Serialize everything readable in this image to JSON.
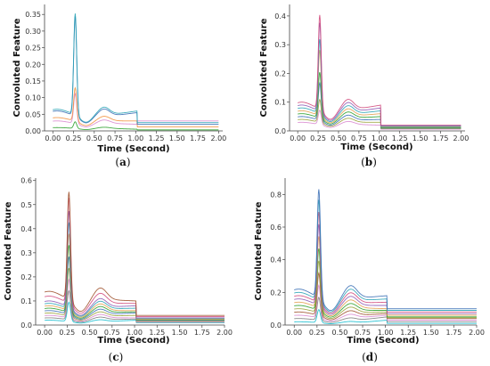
{
  "chart_data": [
    {
      "id": "a",
      "type": "line",
      "panel_label": "(a)",
      "xlabel": "Time (Second)",
      "ylabel": "Convoluted Feature",
      "xlim": [
        -0.1,
        2.05
      ],
      "ylim": [
        0,
        0.38
      ],
      "xticks": [
        "0.00",
        "0.25",
        "0.50",
        "0.75",
        "1.00",
        "1.25",
        "1.50",
        "1.75",
        "2.00"
      ],
      "yticks": [
        "0.00",
        "0.05",
        "0.10",
        "0.15",
        "0.20",
        "0.25",
        "0.30",
        "0.35"
      ],
      "grid": false,
      "series": [
        {
          "color": "#2aa3b6",
          "peak": 0.37,
          "base": 0.065,
          "tail": 0.06,
          "flat": 0.025
        },
        {
          "color": "#3b6fb6",
          "peak": 0.36,
          "base": 0.06,
          "tail": 0.055,
          "flat": 0.02
        },
        {
          "color": "#f2913d",
          "peak": 0.14,
          "base": 0.04,
          "tail": 0.03,
          "flat": 0.012
        },
        {
          "color": "#d98ad0",
          "peak": 0.12,
          "base": 0.03,
          "tail": 0.02,
          "flat": 0.03
        },
        {
          "color": "#2ca02c",
          "peak": 0.03,
          "base": 0.01,
          "tail": 0.005,
          "flat": 0.003
        }
      ]
    },
    {
      "id": "b",
      "type": "line",
      "panel_label": "(b)",
      "xlabel": "Time (Second)",
      "ylabel": "Convoluted Feature",
      "xlim": [
        -0.1,
        2.05
      ],
      "ylim": [
        0,
        0.44
      ],
      "xticks": [
        "0.00",
        "0.25",
        "0.50",
        "0.75",
        "1.00",
        "1.25",
        "1.50",
        "1.75",
        "2.00"
      ],
      "yticks": [
        "0.0",
        "0.1",
        "0.2",
        "0.3",
        "0.4"
      ],
      "grid": false,
      "series": [
        {
          "color": "#d14a7c",
          "peak": 0.43,
          "base": 0.1,
          "tail": 0.09,
          "flat": 0.02
        },
        {
          "color": "#8e5bb5",
          "peak": 0.4,
          "base": 0.09,
          "tail": 0.08,
          "flat": 0.018
        },
        {
          "color": "#2aa3b6",
          "peak": 0.34,
          "base": 0.08,
          "tail": 0.07,
          "flat": 0.016
        },
        {
          "color": "#e3a04f",
          "peak": 0.3,
          "base": 0.07,
          "tail": 0.06,
          "flat": 0.014
        },
        {
          "color": "#2ca02c",
          "peak": 0.22,
          "base": 0.06,
          "tail": 0.05,
          "flat": 0.012
        },
        {
          "color": "#3b6fb6",
          "peak": 0.18,
          "base": 0.05,
          "tail": 0.04,
          "flat": 0.01
        },
        {
          "color": "#9aa33c",
          "peak": 0.12,
          "base": 0.04,
          "tail": 0.03,
          "flat": 0.008
        },
        {
          "color": "#d98ad0",
          "peak": 0.08,
          "base": 0.03,
          "tail": 0.02,
          "flat": 0.006
        }
      ]
    },
    {
      "id": "c",
      "type": "line",
      "panel_label": "(c)",
      "xlabel": "Time (Second)",
      "ylabel": "Convoluted Feature",
      "xlim": [
        -0.1,
        2.0
      ],
      "ylim": [
        0,
        0.61
      ],
      "xticks": [
        "0.00",
        "0.25",
        "0.50",
        "0.75",
        "1.00",
        "1.25",
        "1.50",
        "1.75",
        "2.00"
      ],
      "yticks": [
        "0.0",
        "0.1",
        "0.2",
        "0.3",
        "0.4",
        "0.5",
        "0.6"
      ],
      "grid": false,
      "series": [
        {
          "color": "#a0522d",
          "peak": 0.59,
          "base": 0.14,
          "tail": 0.1,
          "flat": 0.04
        },
        {
          "color": "#d14a7c",
          "peak": 0.56,
          "base": 0.12,
          "tail": 0.09,
          "flat": 0.035
        },
        {
          "color": "#8e5bb5",
          "peak": 0.5,
          "base": 0.1,
          "tail": 0.08,
          "flat": 0.03
        },
        {
          "color": "#2aa3b6",
          "peak": 0.45,
          "base": 0.09,
          "tail": 0.07,
          "flat": 0.028
        },
        {
          "color": "#e3a04f",
          "peak": 0.4,
          "base": 0.08,
          "tail": 0.06,
          "flat": 0.025
        },
        {
          "color": "#2ca02c",
          "peak": 0.35,
          "base": 0.07,
          "tail": 0.055,
          "flat": 0.022
        },
        {
          "color": "#3b6fb6",
          "peak": 0.3,
          "base": 0.06,
          "tail": 0.05,
          "flat": 0.02
        },
        {
          "color": "#9aa33c",
          "peak": 0.25,
          "base": 0.05,
          "tail": 0.04,
          "flat": 0.018
        },
        {
          "color": "#d98ad0",
          "peak": 0.2,
          "base": 0.04,
          "tail": 0.03,
          "flat": 0.015
        },
        {
          "color": "#7f7f7f",
          "peak": 0.15,
          "base": 0.03,
          "tail": 0.025,
          "flat": 0.012
        },
        {
          "color": "#17becf",
          "peak": 0.1,
          "base": 0.02,
          "tail": 0.02,
          "flat": 0.01
        }
      ]
    },
    {
      "id": "d",
      "type": "line",
      "panel_label": "(d)",
      "xlabel": "Time (Second)",
      "ylabel": "Convoluted Feature",
      "xlim": [
        -0.1,
        2.0
      ],
      "ylim": [
        0,
        0.9
      ],
      "xticks": [
        "0.00",
        "0.25",
        "0.50",
        "0.75",
        "1.00",
        "1.25",
        "1.50",
        "1.75",
        "2.00"
      ],
      "yticks": [
        "0.0",
        "0.2",
        "0.4",
        "0.6",
        "0.8"
      ],
      "grid": false,
      "series": [
        {
          "color": "#3b6fb6",
          "peak": 0.89,
          "base": 0.22,
          "tail": 0.18,
          "flat": 0.1
        },
        {
          "color": "#2aa3b6",
          "peak": 0.82,
          "base": 0.2,
          "tail": 0.16,
          "flat": 0.09
        },
        {
          "color": "#d14a7c",
          "peak": 0.74,
          "base": 0.18,
          "tail": 0.14,
          "flat": 0.08
        },
        {
          "color": "#8e5bb5",
          "peak": 0.66,
          "base": 0.16,
          "tail": 0.12,
          "flat": 0.07
        },
        {
          "color": "#e3a04f",
          "peak": 0.58,
          "base": 0.14,
          "tail": 0.1,
          "flat": 0.06
        },
        {
          "color": "#2ca02c",
          "peak": 0.5,
          "base": 0.12,
          "tail": 0.09,
          "flat": 0.05
        },
        {
          "color": "#9aa33c",
          "peak": 0.42,
          "base": 0.1,
          "tail": 0.08,
          "flat": 0.045
        },
        {
          "color": "#a0522d",
          "peak": 0.34,
          "base": 0.08,
          "tail": 0.07,
          "flat": 0.04
        },
        {
          "color": "#d98ad0",
          "peak": 0.26,
          "base": 0.06,
          "tail": 0.06,
          "flat": 0.03
        },
        {
          "color": "#7f7f7f",
          "peak": 0.18,
          "base": 0.04,
          "tail": 0.05,
          "flat": 0.02
        },
        {
          "color": "#17becf",
          "peak": 0.1,
          "base": 0.02,
          "tail": 0.03,
          "flat": 0.01
        }
      ]
    }
  ]
}
